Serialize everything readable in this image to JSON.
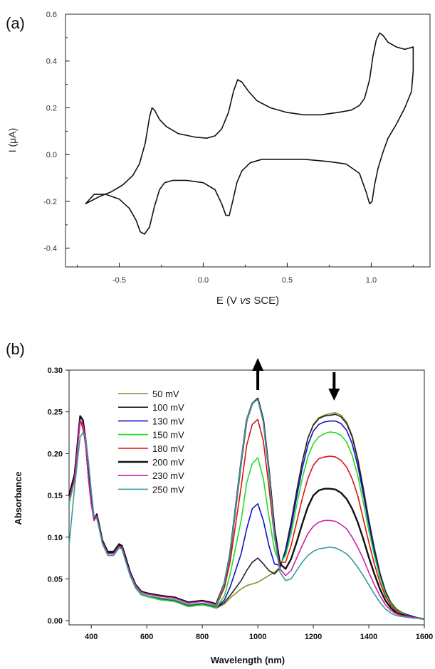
{
  "chart_data": [
    {
      "type": "line",
      "panel_label": "(a)",
      "xlabel": "E (V vs SCE)",
      "xlabel_parts": [
        "E (V ",
        "vs",
        " SCE)"
      ],
      "ylabel": "I (μA)",
      "xlim": [
        -0.82,
        1.35
      ],
      "ylim": [
        -0.48,
        0.6
      ],
      "x_ticks": [
        -0.5,
        0.0,
        0.5,
        1.0
      ],
      "x_tick_labels": [
        "-0.5",
        "0.0",
        "0.5",
        "1.0"
      ],
      "y_ticks": [
        -0.4,
        -0.2,
        0.0,
        0.2,
        0.4,
        0.6
      ],
      "y_tick_labels": [
        "-0.4",
        "-0.2",
        "0.0",
        "0.2",
        "0.4",
        "0.6"
      ],
      "series": [
        {
          "color": "#111111",
          "x": [
            -0.7,
            -0.62,
            -0.55,
            -0.48,
            -0.42,
            -0.38,
            -0.345,
            -0.32,
            -0.305,
            -0.29,
            -0.26,
            -0.22,
            -0.15,
            -0.05,
            0.02,
            0.07,
            0.11,
            0.15,
            0.18,
            0.205,
            0.23,
            0.27,
            0.32,
            0.4,
            0.5,
            0.6,
            0.7,
            0.8,
            0.88,
            0.93,
            0.96,
            0.99,
            1.01,
            1.03,
            1.05,
            1.07,
            1.1,
            1.15,
            1.2,
            1.25,
            1.25,
            1.24,
            1.2,
            1.15,
            1.1,
            1.07,
            1.04,
            1.02,
            1.005,
            0.99,
            0.97,
            0.93,
            0.85,
            0.75,
            0.6,
            0.45,
            0.35,
            0.28,
            0.23,
            0.2,
            0.175,
            0.155,
            0.135,
            0.11,
            0.07,
            0.0,
            -0.1,
            -0.18,
            -0.23,
            -0.26,
            -0.29,
            -0.32,
            -0.35,
            -0.375,
            -0.4,
            -0.44,
            -0.5,
            -0.58,
            -0.65,
            -0.7
          ],
          "y": [
            -0.21,
            -0.18,
            -0.16,
            -0.13,
            -0.09,
            -0.04,
            0.05,
            0.16,
            0.2,
            0.19,
            0.15,
            0.12,
            0.09,
            0.075,
            0.07,
            0.08,
            0.11,
            0.18,
            0.27,
            0.32,
            0.31,
            0.27,
            0.23,
            0.2,
            0.18,
            0.17,
            0.17,
            0.18,
            0.19,
            0.21,
            0.24,
            0.32,
            0.42,
            0.49,
            0.52,
            0.51,
            0.48,
            0.46,
            0.45,
            0.46,
            0.36,
            0.27,
            0.2,
            0.13,
            0.07,
            0.01,
            -0.06,
            -0.13,
            -0.2,
            -0.21,
            -0.16,
            -0.08,
            -0.04,
            -0.03,
            -0.02,
            -0.02,
            -0.02,
            -0.035,
            -0.07,
            -0.12,
            -0.2,
            -0.26,
            -0.26,
            -0.21,
            -0.15,
            -0.12,
            -0.11,
            -0.11,
            -0.12,
            -0.15,
            -0.22,
            -0.31,
            -0.34,
            -0.33,
            -0.28,
            -0.23,
            -0.19,
            -0.17,
            -0.17,
            -0.21
          ]
        }
      ]
    },
    {
      "type": "line",
      "panel_label": "(b)",
      "xlabel": "Wavelength (nm)",
      "ylabel": "Absorbance",
      "xlim": [
        320,
        1600
      ],
      "ylim": [
        -0.005,
        0.3
      ],
      "x_ticks": [
        400,
        600,
        800,
        1000,
        1200,
        1400,
        1600
      ],
      "x_tick_labels": [
        "400",
        "600",
        "800",
        "1000",
        "1200",
        "1400",
        "1600"
      ],
      "y_ticks": [
        0.0,
        0.05,
        0.1,
        0.15,
        0.2,
        0.25,
        0.3
      ],
      "y_tick_labels": [
        "0.00",
        "0.05",
        "0.10",
        "0.15",
        "0.20",
        "0.25",
        "0.30"
      ],
      "legend_position": "upper-left",
      "arrows": [
        {
          "x": 1000,
          "direction": "up"
        },
        {
          "x": 1275,
          "direction": "down"
        }
      ],
      "x": [
        320,
        340,
        360,
        370,
        380,
        390,
        400,
        410,
        420,
        430,
        440,
        460,
        480,
        500,
        510,
        520,
        540,
        560,
        580,
        600,
        650,
        700,
        750,
        800,
        830,
        850,
        880,
        900,
        940,
        960,
        980,
        1000,
        1020,
        1040,
        1060,
        1080,
        1100,
        1120,
        1140,
        1160,
        1180,
        1200,
        1220,
        1240,
        1260,
        1280,
        1300,
        1320,
        1340,
        1360,
        1380,
        1400,
        1420,
        1440,
        1460,
        1480,
        1500,
        1520,
        1540,
        1560,
        1580,
        1600
      ],
      "series": [
        {
          "name": "50 mV",
          "color": "#8c8c30",
          "y": [
            0.14,
            0.17,
            0.245,
            0.24,
            0.21,
            0.17,
            0.14,
            0.12,
            0.128,
            0.11,
            0.095,
            0.083,
            0.083,
            0.092,
            0.09,
            0.078,
            0.055,
            0.04,
            0.032,
            0.03,
            0.026,
            0.024,
            0.018,
            0.02,
            0.018,
            0.015,
            0.02,
            0.027,
            0.038,
            0.042,
            0.044,
            0.046,
            0.05,
            0.054,
            0.058,
            0.064,
            0.085,
            0.118,
            0.155,
            0.19,
            0.218,
            0.235,
            0.243,
            0.246,
            0.248,
            0.249,
            0.246,
            0.238,
            0.222,
            0.195,
            0.16,
            0.122,
            0.088,
            0.058,
            0.036,
            0.022,
            0.014,
            0.01,
            0.007,
            0.005,
            0.003,
            0.002
          ]
        },
        {
          "name": "100 mV",
          "color": "#222222",
          "y": [
            0.14,
            0.17,
            0.245,
            0.24,
            0.21,
            0.17,
            0.14,
            0.12,
            0.128,
            0.11,
            0.095,
            0.083,
            0.083,
            0.092,
            0.09,
            0.078,
            0.055,
            0.04,
            0.032,
            0.03,
            0.026,
            0.024,
            0.018,
            0.02,
            0.018,
            0.015,
            0.022,
            0.03,
            0.048,
            0.06,
            0.07,
            0.075,
            0.068,
            0.06,
            0.056,
            0.063,
            0.085,
            0.118,
            0.155,
            0.19,
            0.218,
            0.234,
            0.242,
            0.245,
            0.246,
            0.247,
            0.244,
            0.236,
            0.22,
            0.193,
            0.158,
            0.12,
            0.086,
            0.057,
            0.035,
            0.021,
            0.013,
            0.009,
            0.007,
            0.005,
            0.003,
            0.002
          ]
        },
        {
          "name": "130 mV",
          "color": "#1010cc",
          "y": [
            0.14,
            0.17,
            0.24,
            0.235,
            0.21,
            0.17,
            0.14,
            0.12,
            0.127,
            0.11,
            0.095,
            0.082,
            0.082,
            0.091,
            0.089,
            0.077,
            0.054,
            0.039,
            0.031,
            0.029,
            0.025,
            0.023,
            0.017,
            0.019,
            0.017,
            0.015,
            0.025,
            0.04,
            0.08,
            0.11,
            0.134,
            0.14,
            0.12,
            0.09,
            0.068,
            0.066,
            0.082,
            0.112,
            0.148,
            0.182,
            0.21,
            0.227,
            0.235,
            0.238,
            0.239,
            0.239,
            0.236,
            0.228,
            0.212,
            0.186,
            0.152,
            0.116,
            0.083,
            0.055,
            0.034,
            0.021,
            0.013,
            0.009,
            0.007,
            0.005,
            0.003,
            0.002
          ]
        },
        {
          "name": "150 mV",
          "color": "#22dd22",
          "y": [
            0.14,
            0.17,
            0.24,
            0.235,
            0.21,
            0.17,
            0.14,
            0.12,
            0.126,
            0.11,
            0.094,
            0.081,
            0.081,
            0.09,
            0.088,
            0.076,
            0.054,
            0.039,
            0.031,
            0.029,
            0.025,
            0.023,
            0.017,
            0.019,
            0.017,
            0.015,
            0.03,
            0.055,
            0.12,
            0.165,
            0.188,
            0.195,
            0.17,
            0.125,
            0.085,
            0.068,
            0.078,
            0.104,
            0.138,
            0.17,
            0.196,
            0.212,
            0.22,
            0.224,
            0.226,
            0.225,
            0.222,
            0.214,
            0.198,
            0.174,
            0.142,
            0.108,
            0.078,
            0.052,
            0.032,
            0.02,
            0.012,
            0.009,
            0.006,
            0.004,
            0.003,
            0.002
          ]
        },
        {
          "name": "180 mV",
          "color": "#dd1111",
          "y": [
            0.145,
            0.17,
            0.24,
            0.23,
            0.21,
            0.17,
            0.14,
            0.12,
            0.125,
            0.11,
            0.094,
            0.08,
            0.08,
            0.089,
            0.087,
            0.076,
            0.054,
            0.04,
            0.032,
            0.03,
            0.027,
            0.025,
            0.019,
            0.021,
            0.019,
            0.017,
            0.04,
            0.07,
            0.16,
            0.21,
            0.235,
            0.241,
            0.215,
            0.16,
            0.1,
            0.07,
            0.07,
            0.09,
            0.118,
            0.146,
            0.17,
            0.186,
            0.194,
            0.196,
            0.197,
            0.196,
            0.192,
            0.184,
            0.17,
            0.15,
            0.122,
            0.094,
            0.068,
            0.046,
            0.029,
            0.018,
            0.011,
            0.008,
            0.006,
            0.004,
            0.003,
            0.002
          ]
        },
        {
          "name": "200 mV",
          "color": "#111111",
          "y": [
            0.15,
            0.175,
            0.245,
            0.24,
            0.215,
            0.175,
            0.145,
            0.122,
            0.127,
            0.112,
            0.096,
            0.082,
            0.082,
            0.091,
            0.09,
            0.08,
            0.058,
            0.043,
            0.035,
            0.033,
            0.03,
            0.028,
            0.022,
            0.024,
            0.022,
            0.02,
            0.045,
            0.08,
            0.19,
            0.24,
            0.26,
            0.266,
            0.24,
            0.18,
            0.11,
            0.068,
            0.062,
            0.074,
            0.094,
            0.116,
            0.136,
            0.15,
            0.156,
            0.158,
            0.158,
            0.157,
            0.153,
            0.146,
            0.134,
            0.118,
            0.098,
            0.076,
            0.056,
            0.038,
            0.024,
            0.015,
            0.009,
            0.007,
            0.005,
            0.004,
            0.003,
            0.002
          ]
        },
        {
          "name": "230 mV",
          "color": "#cc22aa",
          "y": [
            0.145,
            0.17,
            0.24,
            0.235,
            0.21,
            0.17,
            0.14,
            0.12,
            0.125,
            0.11,
            0.094,
            0.08,
            0.08,
            0.089,
            0.088,
            0.077,
            0.056,
            0.042,
            0.034,
            0.032,
            0.029,
            0.027,
            0.021,
            0.023,
            0.021,
            0.019,
            0.045,
            0.08,
            0.19,
            0.24,
            0.26,
            0.265,
            0.238,
            0.178,
            0.105,
            0.062,
            0.054,
            0.06,
            0.075,
            0.09,
            0.104,
            0.113,
            0.118,
            0.12,
            0.12,
            0.119,
            0.115,
            0.11,
            0.1,
            0.088,
            0.074,
            0.058,
            0.043,
            0.03,
            0.019,
            0.012,
            0.008,
            0.006,
            0.005,
            0.004,
            0.003,
            0.002
          ]
        },
        {
          "name": "250 mV",
          "color": "#3a9a9a",
          "y": [
            0.09,
            0.16,
            0.22,
            0.225,
            0.22,
            0.19,
            0.155,
            0.125,
            0.122,
            0.108,
            0.092,
            0.078,
            0.078,
            0.087,
            0.086,
            0.075,
            0.054,
            0.04,
            0.032,
            0.03,
            0.027,
            0.025,
            0.019,
            0.021,
            0.019,
            0.018,
            0.045,
            0.08,
            0.19,
            0.24,
            0.26,
            0.265,
            0.238,
            0.178,
            0.1,
            0.058,
            0.048,
            0.05,
            0.06,
            0.07,
            0.078,
            0.083,
            0.086,
            0.087,
            0.088,
            0.087,
            0.084,
            0.08,
            0.073,
            0.064,
            0.054,
            0.043,
            0.032,
            0.022,
            0.014,
            0.009,
            0.006,
            0.005,
            0.004,
            0.003,
            0.003,
            0.002
          ]
        }
      ]
    }
  ]
}
